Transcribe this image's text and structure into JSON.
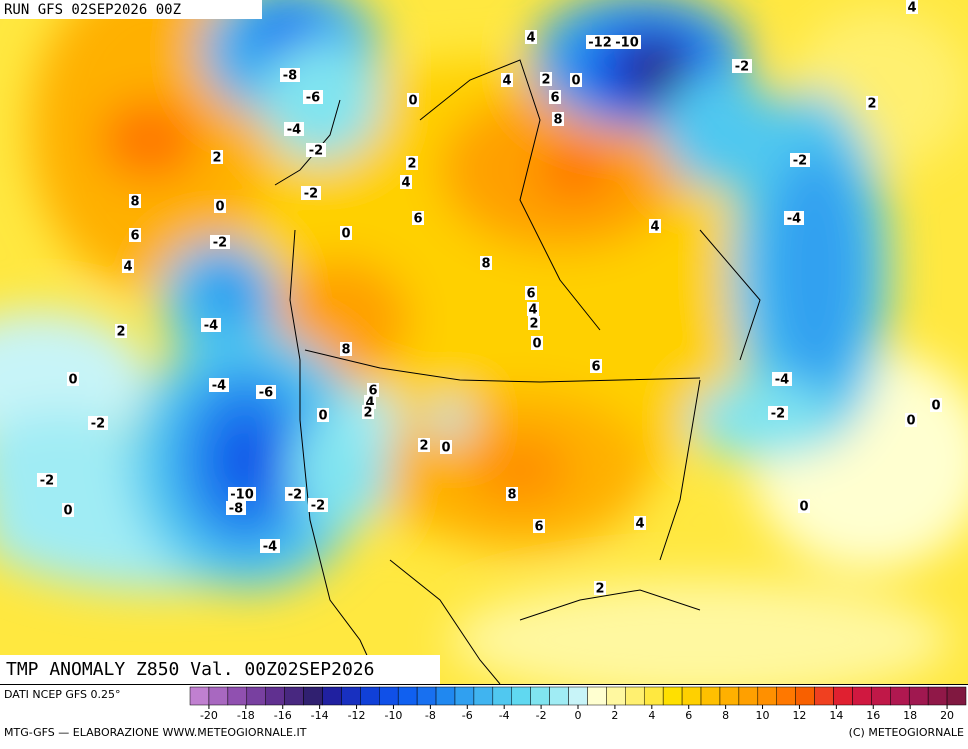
{
  "header": {
    "run": "RUN GFS 02SEP2026 00Z"
  },
  "map": {
    "title": "TMP ANOMALY Z850 Val. 00Z02SEP2026",
    "contour_labels": [
      -8,
      -6,
      -4,
      -2,
      -2,
      0,
      2,
      8,
      0,
      6,
      -2,
      4,
      0,
      2,
      4,
      6,
      -4,
      2,
      8,
      0,
      -4,
      -6,
      -2,
      6,
      4,
      2,
      0,
      2,
      0,
      -2,
      -10,
      -8,
      -2,
      -2,
      0,
      -4,
      8,
      6,
      4,
      2,
      0,
      8,
      6,
      4,
      2,
      0,
      6,
      4,
      8,
      6,
      2,
      4,
      4,
      0,
      -10,
      -12,
      -2,
      2,
      -2,
      -4,
      -4,
      -2,
      0,
      0,
      4
    ]
  },
  "legend": {
    "source": "DATI NCEP GFS 0.25°",
    "ticks": [
      -20,
      -18,
      -16,
      -14,
      -12,
      -10,
      -8,
      -6,
      -4,
      -2,
      0,
      2,
      4,
      6,
      8,
      10,
      12,
      14,
      16,
      18,
      20
    ],
    "colors": [
      "#c080d0",
      "#a868c0",
      "#9050b0",
      "#7840a0",
      "#603090",
      "#482880",
      "#302070",
      "#2020a0",
      "#1830c0",
      "#1040d8",
      "#1050e8",
      "#1060f0",
      "#1870f0",
      "#2088f0",
      "#30a0f0",
      "#40b4f0",
      "#50c8f0",
      "#60d8f0",
      "#80e4f0",
      "#a0ecf4",
      "#c8f4f8",
      "#ffffd0",
      "#fff8a0",
      "#fff070",
      "#ffe840",
      "#ffe000",
      "#ffd000",
      "#ffc000",
      "#ffb000",
      "#ffa000",
      "#ff9000",
      "#ff7800",
      "#f86000",
      "#f04020",
      "#e02030",
      "#d01840",
      "#c01848",
      "#b01850",
      "#a01850",
      "#901848",
      "#801840"
    ]
  },
  "footer": {
    "left": "MTG-GFS — ELABORAZIONE WWW.METEOGIORNALE.IT",
    "right": "(C) METEOGIORNALE"
  }
}
